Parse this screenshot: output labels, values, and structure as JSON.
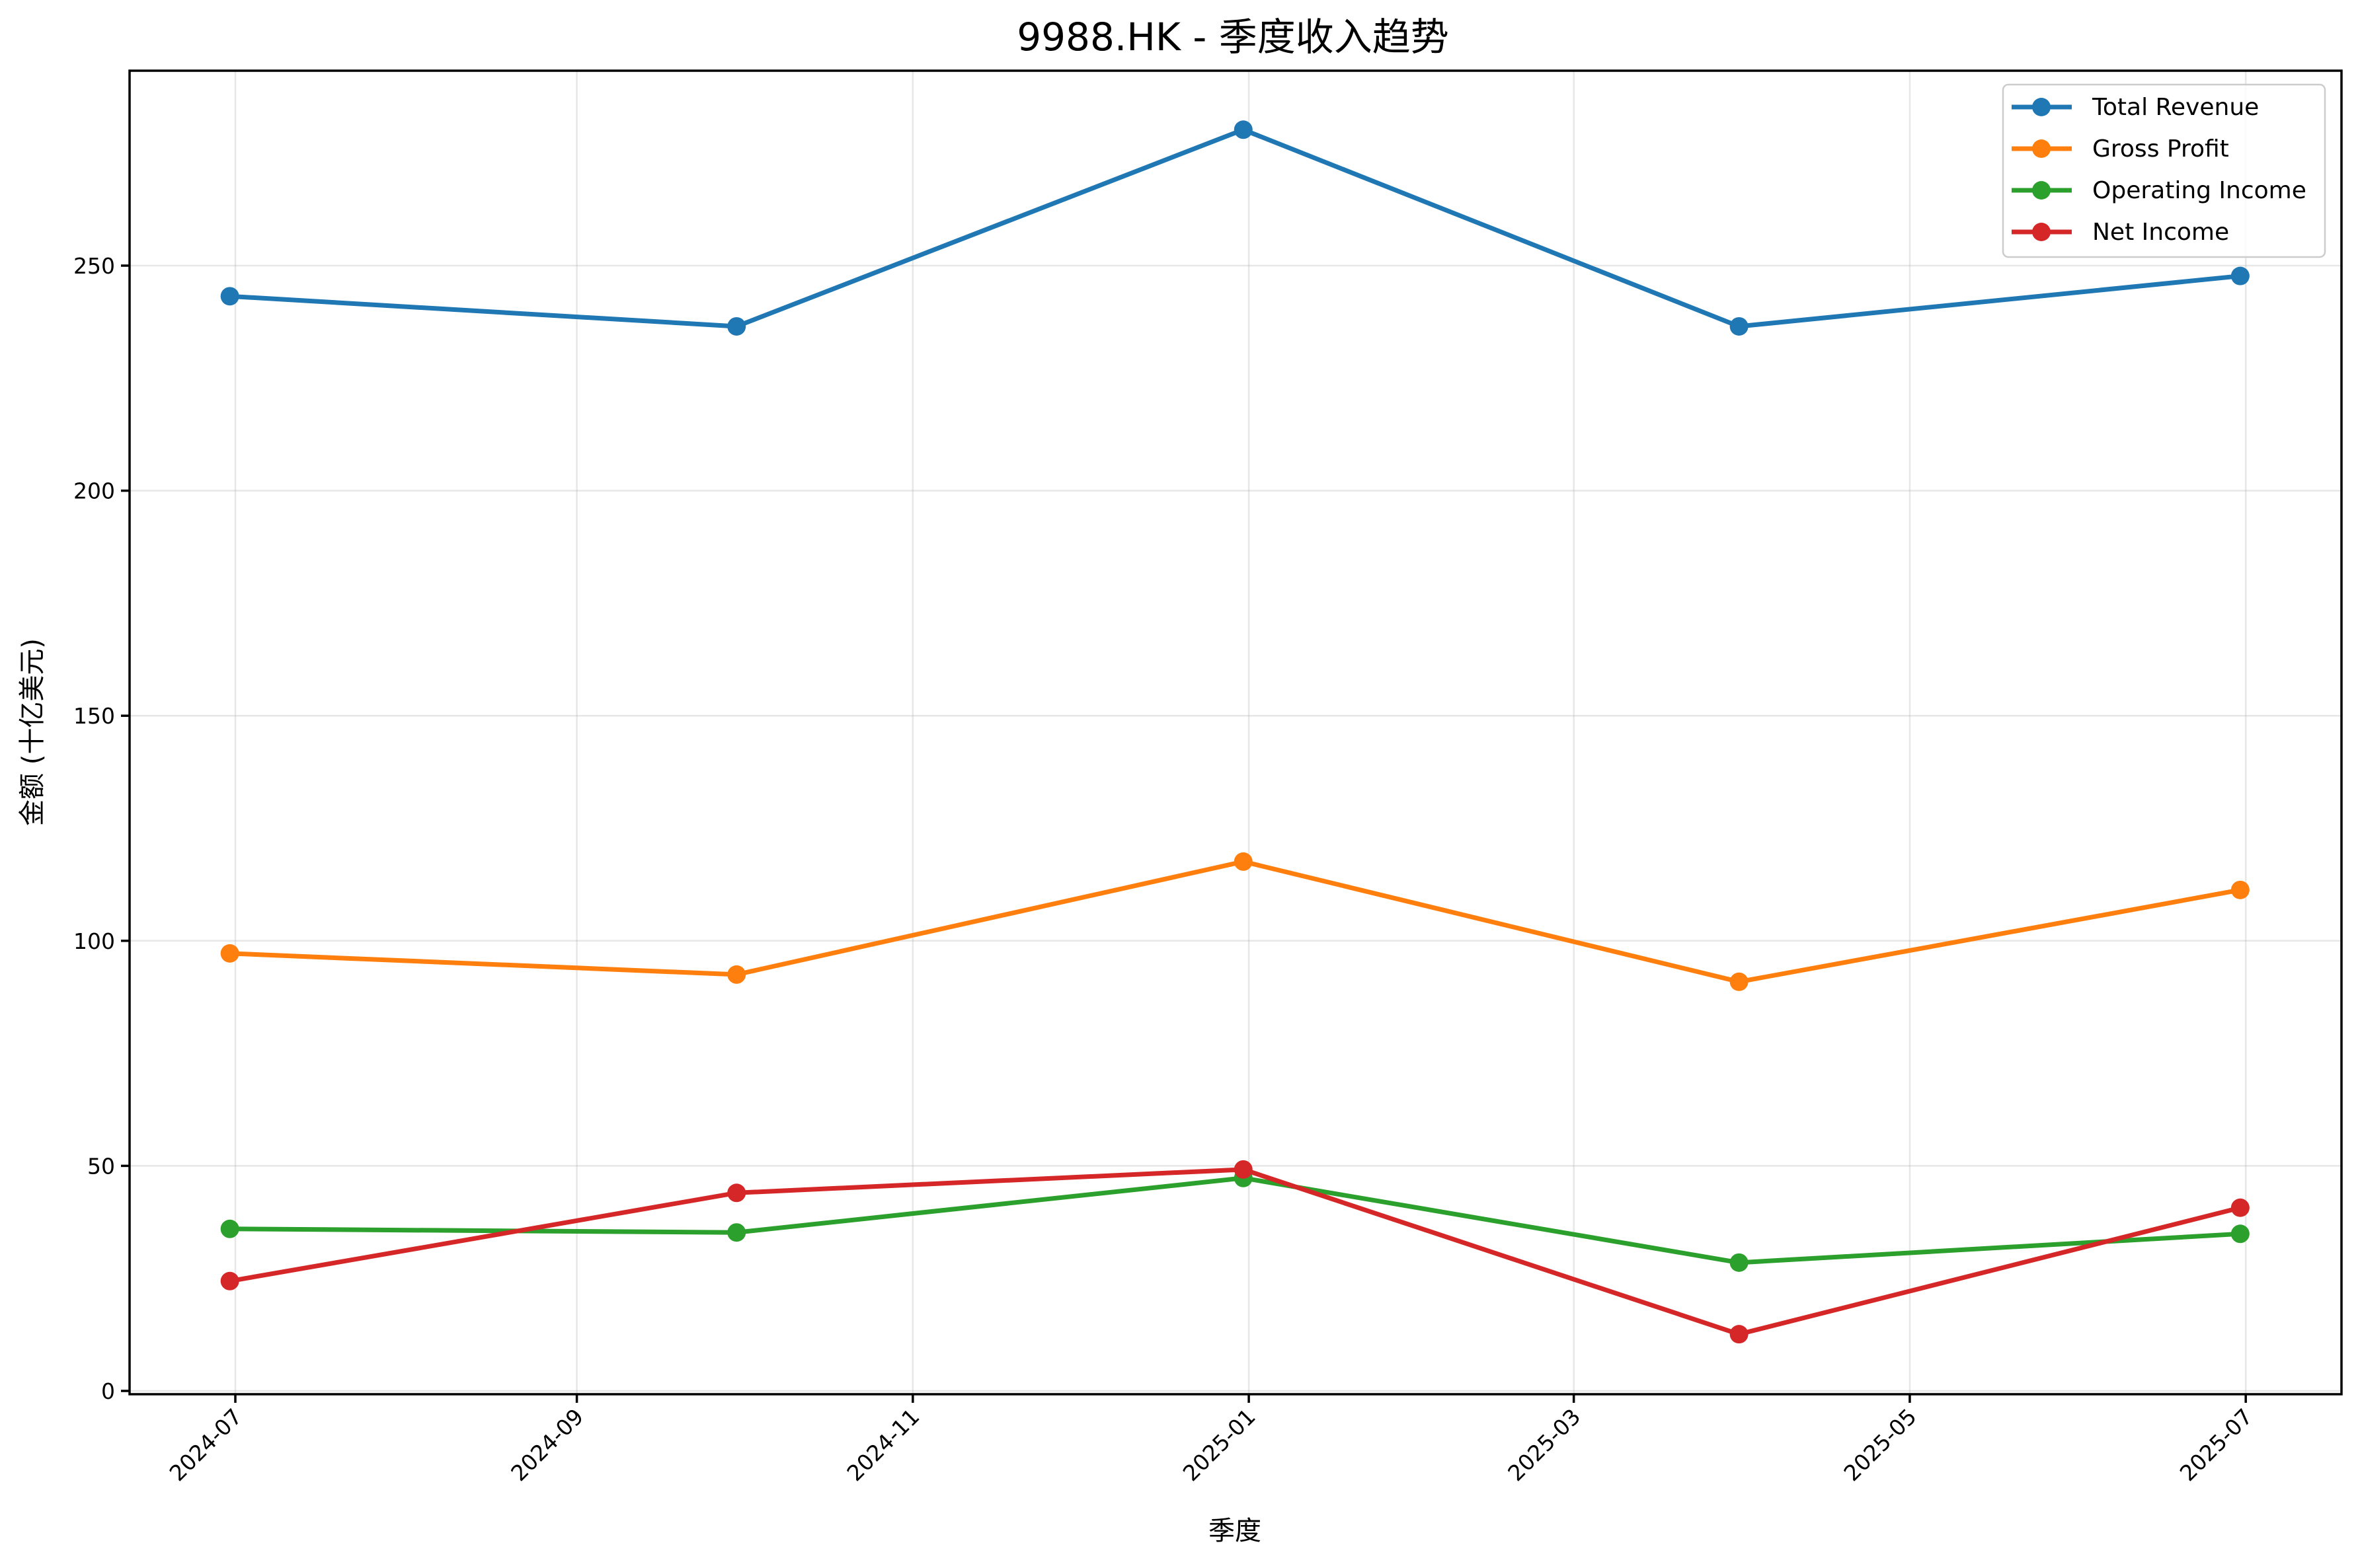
{
  "chart_data": {
    "type": "line",
    "title": "9988.HK - 季度收入趋势",
    "xlabel": "季度",
    "ylabel": "金额 (十亿美元)",
    "x": [
      "2024-06-30",
      "2024-09-30",
      "2024-12-31",
      "2025-03-31",
      "2025-06-30"
    ],
    "series": [
      {
        "name": "Total Revenue",
        "color": "#1f77b4",
        "values": [
          243.2,
          236.5,
          280.2,
          236.5,
          247.7
        ]
      },
      {
        "name": "Gross Profit",
        "color": "#ff7f0e",
        "values": [
          97.2,
          92.5,
          117.6,
          90.9,
          111.3
        ]
      },
      {
        "name": "Operating Income",
        "color": "#2ca02c",
        "values": [
          36.0,
          35.2,
          47.3,
          28.5,
          34.9
        ]
      },
      {
        "name": "Net Income",
        "color": "#d62728",
        "values": [
          24.4,
          44.0,
          49.2,
          12.6,
          40.7
        ]
      }
    ],
    "x_ticks": [
      "2024-07",
      "2024-09",
      "2024-11",
      "2025-01",
      "2025-03",
      "2025-05",
      "2025-07"
    ],
    "y_ticks": [
      0,
      50,
      100,
      150,
      200,
      250
    ],
    "ylim": [
      -0.7,
      293.3
    ],
    "xlim": [
      "2024-06-12",
      "2025-07-19"
    ],
    "grid": true,
    "legend_position": "upper right",
    "marker": "circle"
  }
}
